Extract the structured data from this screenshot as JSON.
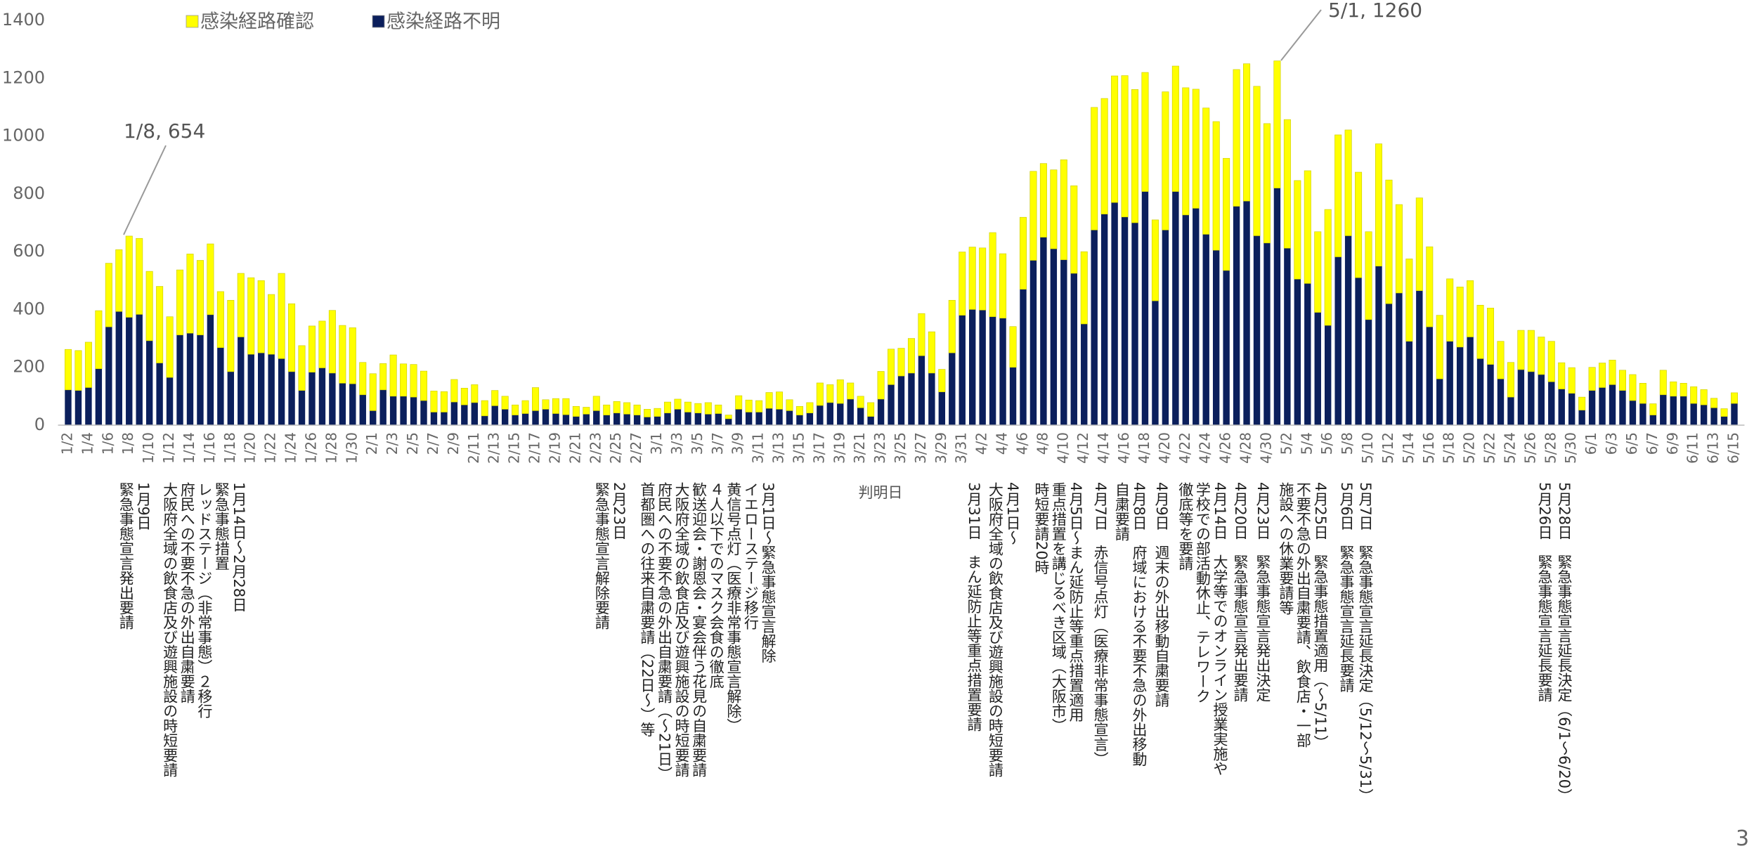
{
  "chart_data": {
    "type": "stacked_bar",
    "x_label": "判明日",
    "categories": [
      "1/2",
      null,
      "1/4",
      null,
      "1/6",
      null,
      "1/8",
      null,
      "1/10",
      null,
      "1/12",
      null,
      "1/14",
      null,
      "1/16",
      null,
      "1/18",
      null,
      "1/20",
      null,
      "1/22",
      null,
      "1/24",
      null,
      "1/26",
      null,
      "1/28",
      null,
      "1/30",
      null,
      "2/1",
      null,
      "2/3",
      null,
      "2/5",
      null,
      "2/7",
      null,
      "2/9",
      null,
      "2/11",
      null,
      "2/13",
      null,
      "2/15",
      null,
      "2/17",
      null,
      "2/19",
      null,
      "2/21",
      null,
      "2/23",
      null,
      "2/25",
      null,
      "2/27",
      null,
      "3/1",
      null,
      "3/3",
      null,
      "3/5",
      null,
      "3/7",
      null,
      "3/9",
      null,
      "3/11",
      null,
      "3/13",
      null,
      "3/15",
      null,
      "3/17",
      null,
      "3/19",
      null,
      "3/21",
      null,
      "3/23",
      null,
      "3/25",
      null,
      "3/27",
      null,
      "3/29",
      null,
      "3/31",
      null,
      "4/2",
      null,
      "4/4",
      null,
      "4/6",
      null,
      "4/8",
      null,
      "4/10",
      null,
      "4/12",
      null,
      "4/14",
      null,
      "4/16",
      null,
      "4/18",
      null,
      "4/20",
      null,
      "4/22",
      null,
      "4/24",
      null,
      "4/26",
      null,
      "4/28",
      null,
      "4/30",
      null,
      "5/2",
      null,
      "5/4",
      null,
      "5/6",
      null,
      "5/8",
      null,
      "5/10",
      null,
      "5/12",
      null,
      "5/14",
      null,
      "5/16",
      null,
      "5/18",
      null,
      "5/20",
      null,
      "5/22",
      null,
      "5/24",
      null,
      "5/26",
      null,
      "5/28",
      null,
      "5/30",
      null,
      "6/1",
      null,
      "6/3",
      null,
      "6/5",
      null,
      "6/7",
      null,
      "6/9",
      null,
      "6/11",
      null,
      "6/13",
      null,
      "6/15"
    ],
    "series": [
      {
        "name": "感染経路確認",
        "color": "#ffff00",
        "values": [
          140,
          138,
          157,
          201,
          220,
          214,
          281,
          263,
          240,
          265,
          210,
          225,
          274,
          258,
          245,
          194,
          247,
          220,
          265,
          250,
          207,
          295,
          235,
          155,
          160,
          162,
          217,
          200,
          194,
          112,
          128,
          91,
          143,
          112,
          113,
          102,
          73,
          71,
          78,
          58,
          62,
          53,
          53,
          45,
          35,
          45,
          80,
          33,
          52,
          56,
          35,
          24,
          50,
          35,
          40,
          40,
          35,
          27,
          28,
          38,
          35,
          35,
          33,
          40,
          30,
          13,
          47,
          42,
          40,
          55,
          60,
          38,
          30,
          36,
          78,
          62,
          82,
          56,
          40,
          48,
          96,
          123,
          96,
          120,
          146,
          143,
          78,
          182,
          219,
          216,
          215,
          291,
          223,
          141,
          249,
          308,
          255,
          273,
          346,
          303,
          250,
          424,
          400,
          438,
          489,
          461,
          412,
          280,
          478,
          434,
          440,
          412,
          437,
          445,
          388,
          473,
          475,
          517,
          413,
          440,
          445,
          341,
          390,
          279,
          401,
          422,
          366,
          365,
          304,
          423,
          428,
          306,
          285,
          321,
          277,
          220,
          216,
          208,
          195,
          185,
          195,
          130,
          120,
          136,
          143,
          130,
          140,
          91,
          89,
          45,
          80,
          85,
          85,
          70,
          90,
          70,
          39,
          85,
          50,
          45,
          58,
          53,
          33,
          27,
          37
        ]
      },
      {
        "name": "感染経路不明",
        "color": "#0b1f5c",
        "values": [
          122,
          120,
          130,
          195,
          340,
          393,
          373,
          383,
          292,
          215,
          165,
          312,
          318,
          312,
          382,
          268,
          185,
          305,
          245,
          250,
          245,
          230,
          185,
          120,
          183,
          198,
          180,
          145,
          143,
          105,
          50,
          122,
          100,
          100,
          97,
          85,
          45,
          45,
          80,
          70,
          78,
          32,
          67,
          55,
          35,
          40,
          50,
          55,
          40,
          36,
          30,
          38,
          50,
          35,
          42,
          38,
          35,
          28,
          30,
          42,
          55,
          45,
          42,
          38,
          40,
          22,
          55,
          45,
          45,
          58,
          55,
          50,
          35,
          42,
          68,
          78,
          75,
          90,
          60,
          30,
          90,
          140,
          170,
          180,
          240,
          180,
          115,
          250,
          380,
          400,
          398,
          375,
          370,
          200,
          470,
          570,
          650,
          610,
          572,
          525,
          350,
          675,
          730,
          770,
          720,
          700,
          808,
          430,
          675,
          808,
          727,
          750,
          660,
          605,
          535,
          757,
          775,
          655,
          630,
          820,
          612,
          505,
          490,
          390,
          345,
          582,
          655,
          510,
          365,
          550,
          420,
          457,
          290,
          465,
          340,
          160,
          290,
          270,
          305,
          230,
          210,
          160,
          97,
          192,
          185,
          175,
          150,
          125,
          110,
          52,
          120,
          130,
          140,
          120,
          85,
          75,
          35,
          105,
          100,
          100,
          75,
          70,
          60,
          30,
          75
        ]
      }
    ],
    "ylim": [
      0,
      1400
    ],
    "yticks": [
      0,
      200,
      400,
      600,
      800,
      1000,
      1200,
      1400
    ],
    "annotations": [
      {
        "text": "1/8, 654"
      },
      {
        "text": "5/1, 1260"
      }
    ]
  },
  "events": [
    {
      "lines": [
        "1月9日",
        "緊急事態宣言発出要請"
      ]
    },
    {
      "lines": [
        "1月14日～2月28日",
        "緊急事態措置",
        "レッドステージ（非常事態）２移行",
        "府民への不要不急の外出自粛要請",
        "大阪府全域の飲食店及び遊興施設の時短要請"
      ]
    },
    {
      "lines": [
        "2月23日",
        "緊急事態宣言解除要請"
      ]
    },
    {
      "lines": [
        "3月1日～緊急事態宣言解除",
        "イエローステージ移行",
        "黄信号点灯（医療非常事態宣言解除）",
        "４人以下でのマスク会食の徹底",
        "歓送迎会・謝恩会・宴会伴う花見の自粛要請",
        "大阪府全域の飲食店及び遊興施設の時短要請",
        "府民への不要不急の外出自粛要請（～21日）",
        "首都圏への往来自粛要請（22日～）等"
      ]
    },
    {
      "lines": [
        "3月31日　まん延防止等重点措置要請"
      ]
    },
    {
      "lines": [
        "4月1日～",
        "大阪府全域の飲食店及び遊興施設の時短要請"
      ]
    },
    {
      "lines": [
        "4月5日～まん延防止等重点措置適用",
        "重点措置を講じるべき区域（大阪市）",
        "時短要請20時"
      ]
    },
    {
      "lines": [
        "4月7日　赤信号点灯（医療非常事態宣言）"
      ]
    },
    {
      "lines": [
        "4月8日　府域における不要不急の外出移動",
        "自粛要請"
      ]
    },
    {
      "lines": [
        "4月9日　週末の外出移動自粛要請"
      ]
    },
    {
      "lines": [
        "4月14日　大学等でのオンライン授業実施や",
        "学校での部活動休止、テレワーク",
        "徹底等を要請"
      ]
    },
    {
      "lines": [
        "4月20日　緊急事態宣言発出要請"
      ]
    },
    {
      "lines": [
        "4月23日　緊急事態宣言発出決定"
      ]
    },
    {
      "lines": [
        "4月25日　緊急事態措置適用（～5/11）",
        "不要不急の外出自粛要請、飲食店・一部",
        "施設への休業要請等"
      ]
    },
    {
      "lines": [
        "5月6日　緊急事態宣言延長要請"
      ]
    },
    {
      "lines": [
        "5月7日　緊急事態宣言延長決定（5/12～5/31）"
      ]
    },
    {
      "lines": [
        "5月26日　緊急事態宣言延長要請"
      ]
    },
    {
      "lines": [
        "5月28日　緊急事態宣言延長決定（6/1～6/20）"
      ]
    }
  ],
  "page_number": "3"
}
